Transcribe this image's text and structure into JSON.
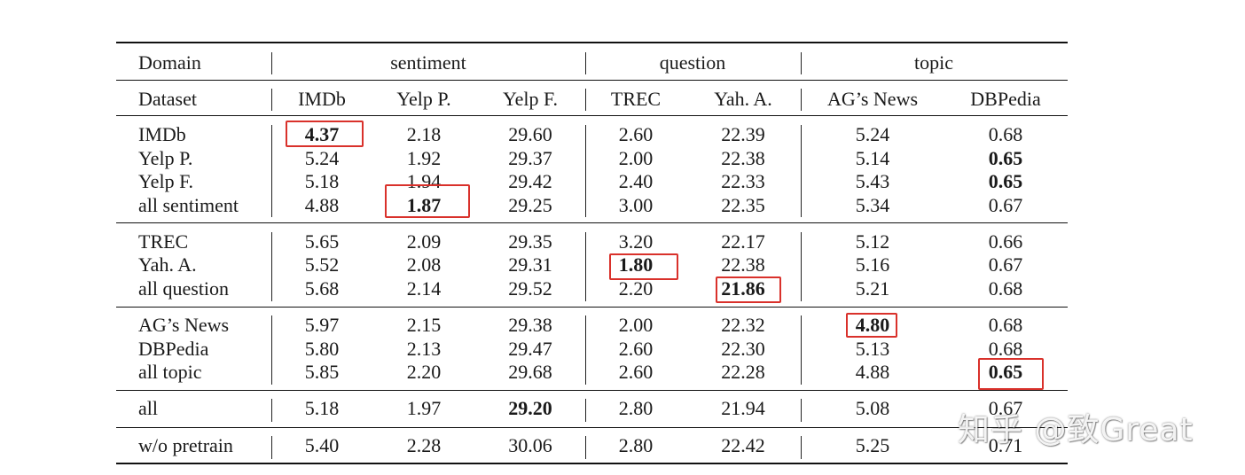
{
  "header": {
    "domain_label": "Domain",
    "groups": [
      "sentiment",
      "question",
      "topic"
    ],
    "dataset_label": "Dataset",
    "columns": [
      "IMDb",
      "Yelp P.",
      "Yelp F.",
      "TREC",
      "Yah. A.",
      "AG’s News",
      "DBPedia"
    ]
  },
  "blocks": [
    {
      "rows": [
        {
          "label": "IMDb",
          "values": [
            "4.37",
            "2.18",
            "29.60",
            "2.60",
            "22.39",
            "5.24",
            "0.68"
          ],
          "bold": [
            0
          ],
          "boxed": [
            0
          ]
        },
        {
          "label": "Yelp P.",
          "values": [
            "5.24",
            "1.92",
            "29.37",
            "2.00",
            "22.38",
            "5.14",
            "0.65"
          ],
          "bold": [
            6
          ],
          "boxed": []
        },
        {
          "label": "Yelp F.",
          "values": [
            "5.18",
            "1.94",
            "29.42",
            "2.40",
            "22.33",
            "5.43",
            "0.65"
          ],
          "bold": [
            6
          ],
          "boxed": []
        },
        {
          "label": "all sentiment",
          "values": [
            "4.88",
            "1.87",
            "29.25",
            "3.00",
            "22.35",
            "5.34",
            "0.67"
          ],
          "bold": [
            1
          ],
          "boxed": [
            1
          ]
        }
      ]
    },
    {
      "rows": [
        {
          "label": "TREC",
          "values": [
            "5.65",
            "2.09",
            "29.35",
            "3.20",
            "22.17",
            "5.12",
            "0.66"
          ],
          "bold": [],
          "boxed": []
        },
        {
          "label": "Yah. A.",
          "values": [
            "5.52",
            "2.08",
            "29.31",
            "1.80",
            "22.38",
            "5.16",
            "0.67"
          ],
          "bold": [
            3
          ],
          "boxed": [
            3
          ]
        },
        {
          "label": "all question",
          "values": [
            "5.68",
            "2.14",
            "29.52",
            "2.20",
            "21.86",
            "5.21",
            "0.68"
          ],
          "bold": [
            4
          ],
          "boxed": [
            4
          ]
        }
      ]
    },
    {
      "rows": [
        {
          "label": "AG’s News",
          "values": [
            "5.97",
            "2.15",
            "29.38",
            "2.00",
            "22.32",
            "4.80",
            "0.68"
          ],
          "bold": [
            5
          ],
          "boxed": [
            5
          ]
        },
        {
          "label": "DBPedia",
          "values": [
            "5.80",
            "2.13",
            "29.47",
            "2.60",
            "22.30",
            "5.13",
            "0.68"
          ],
          "bold": [],
          "boxed": []
        },
        {
          "label": "all topic",
          "values": [
            "5.85",
            "2.20",
            "29.68",
            "2.60",
            "22.28",
            "4.88",
            "0.65"
          ],
          "bold": [
            6
          ],
          "boxed": [
            6
          ]
        }
      ]
    },
    {
      "rows": [
        {
          "label": "all",
          "values": [
            "5.18",
            "1.97",
            "29.20",
            "2.80",
            "21.94",
            "5.08",
            "0.67"
          ],
          "bold": [
            2
          ],
          "boxed": []
        }
      ]
    },
    {
      "rows": [
        {
          "label": "w/o pretrain",
          "values": [
            "5.40",
            "2.28",
            "30.06",
            "2.80",
            "22.42",
            "5.25",
            "0.71"
          ],
          "bold": [],
          "boxed": []
        }
      ]
    }
  ],
  "watermark": "知乎 @致Great",
  "colors": {
    "highlight_box": "#d9312b",
    "rule": "#111111"
  }
}
